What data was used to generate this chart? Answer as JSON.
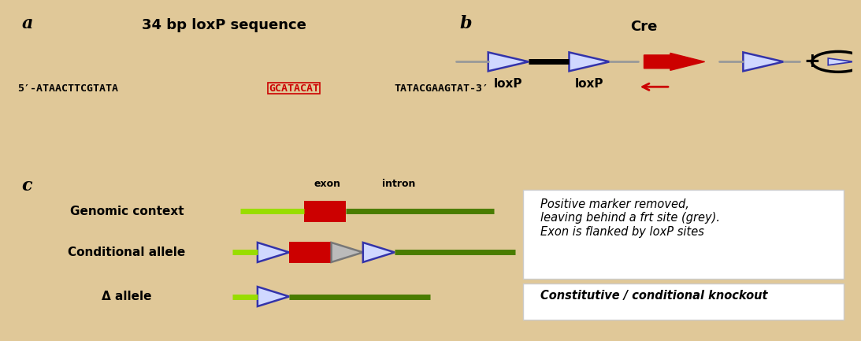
{
  "bg_color": "#faecd0",
  "outer_bg": "#e0c898",
  "title_a": "34 bp loxP sequence",
  "seq_prefix": "5′-ATAACTTCGTATA",
  "seq_highlight": "GCATACAT",
  "seq_suffix": "TATACGAAGTAT-3′",
  "label_a": "a",
  "label_b": "b",
  "label_c": "c",
  "cre_label": "Cre",
  "loxp1_label": "loxP",
  "loxp2_label": "loxP",
  "genomic_label": "Genomic context",
  "conditional_label": "Conditional allele",
  "delta_label": "Δ allele",
  "exon_label": "exon",
  "intron_label": "intron",
  "box1_text": "Positive marker removed,\nleaving behind a frt site (grey).\nExon is flanked by loxP sites",
  "box2_text": "Constitutive / conditional knockout",
  "black_color": "#000000",
  "red_color": "#cc0000",
  "blue_color": "#3333aa",
  "dark_green": "#4a7c00",
  "lime_green": "#99dd00",
  "gray_color": "#aaaaaa",
  "white_color": "#ffffff"
}
